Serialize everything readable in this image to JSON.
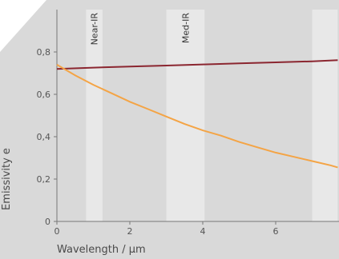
{
  "chart_data": {
    "type": "line",
    "title": "",
    "xlabel": "Wavelength / µm",
    "ylabel": "Emissivity e",
    "xlim": [
      0,
      7.7
    ],
    "ylim": [
      0,
      1.0
    ],
    "grid": false,
    "x_ticks": [
      "0",
      "2",
      "4",
      "6"
    ],
    "y_ticks": [
      "0",
      "0,2",
      "0,4",
      "0,6",
      "0,8"
    ],
    "bands": [
      {
        "label": "Near-IR",
        "x0": 0.8,
        "x1": 1.25
      },
      {
        "label": "Med-IR",
        "x0": 3.0,
        "x1": 4.05
      },
      {
        "label": "",
        "x0": 7.0,
        "x1": 7.7
      }
    ],
    "series": [
      {
        "color": "#8b2630",
        "x": [
          0,
          1,
          2,
          3,
          4,
          5,
          6,
          7,
          7.7
        ],
        "values": [
          0.72,
          0.726,
          0.731,
          0.736,
          0.741,
          0.746,
          0.751,
          0.756,
          0.761
        ]
      },
      {
        "color": "#f4a445",
        "x": [
          0,
          0.5,
          1,
          1.5,
          2,
          2.5,
          3,
          3.5,
          4,
          4.5,
          5,
          5.5,
          6,
          6.5,
          7,
          7.5,
          7.7
        ],
        "values": [
          0.74,
          0.69,
          0.645,
          0.605,
          0.565,
          0.53,
          0.495,
          0.46,
          0.43,
          0.405,
          0.375,
          0.35,
          0.325,
          0.305,
          0.285,
          0.265,
          0.255
        ]
      }
    ]
  }
}
